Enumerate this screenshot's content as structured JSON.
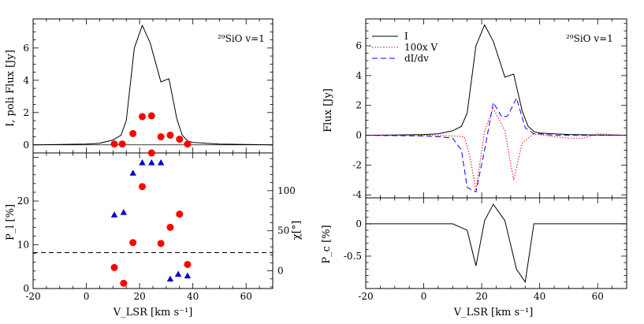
{
  "chart_data": [
    {
      "type": "line",
      "panel": "left-top",
      "annotation": "²⁹SiO v=1",
      "ylabel": "I, poli Flux [Jy]",
      "xlim": [
        -20,
        70
      ],
      "ylim": [
        -0.5,
        7.8
      ],
      "yticks": [
        0,
        2,
        4,
        6
      ],
      "series": [
        {
          "kind": "line",
          "color": "#000000",
          "x": [
            -20,
            -10,
            0,
            5,
            10,
            13,
            15,
            18,
            21,
            24,
            28,
            31,
            34,
            36,
            38,
            40,
            45,
            50,
            60,
            70
          ],
          "y": [
            0,
            0.02,
            0.05,
            0.1,
            0.3,
            0.6,
            1.5,
            6.0,
            7.4,
            6.3,
            3.9,
            4.1,
            1.6,
            0.6,
            0.25,
            0.15,
            0.1,
            0.05,
            0.02,
            0
          ]
        },
        {
          "kind": "scatter",
          "color": "#ff0000",
          "x": [
            10.5,
            13.5,
            17.5,
            21,
            24.5,
            28,
            31.5,
            35,
            38
          ],
          "y": [
            0.05,
            0.05,
            0.7,
            1.75,
            1.8,
            0.5,
            0.6,
            0.35,
            0.05
          ]
        }
      ]
    },
    {
      "type": "scatter",
      "panel": "left-bottom",
      "xlabel": "V_LSR [km s⁻¹]",
      "ylabel": "P_l [%]",
      "y2label": "χ[°]",
      "xlim": [
        -20,
        70
      ],
      "xticks": [
        -20,
        0,
        20,
        40,
        60
      ],
      "ylim": [
        0,
        31
      ],
      "yticks": [
        0,
        10,
        20
      ],
      "y2lim": [
        -22,
        147
      ],
      "y2ticks": [
        0,
        50,
        100
      ],
      "series": [
        {
          "name": "P_l",
          "kind": "scatter",
          "color": "#ff0000",
          "x": [
            10.5,
            14,
            17.5,
            21,
            24.5,
            28,
            31.5,
            35,
            38
          ],
          "y": [
            4.8,
            1.2,
            10.5,
            23.3,
            31.0,
            10.3,
            14.0,
            17.0,
            5.5
          ]
        },
        {
          "name": "chi",
          "kind": "triangle",
          "color": "#0000cc",
          "x": [
            10.5,
            14,
            17.5,
            21,
            24.5,
            28,
            31.5,
            34.5,
            38
          ],
          "y2": [
            70,
            73,
            122,
            135,
            135,
            135,
            -10,
            -4,
            -6
          ]
        },
        {
          "name": "threshold",
          "kind": "dashed",
          "color": "#000000",
          "y": 8.2
        }
      ]
    },
    {
      "type": "line",
      "panel": "right-top",
      "annotation": "²⁹SiO v=1",
      "ylabel": "Flux [Jy]",
      "xlim": [
        -20,
        70
      ],
      "ylim": [
        -4.2,
        7.8
      ],
      "yticks": [
        -4,
        -2,
        0,
        2,
        4,
        6
      ],
      "legend": "top-left",
      "series": [
        {
          "name": "I",
          "kind": "line",
          "color": "#000000",
          "dash": "none",
          "x": [
            -20,
            -10,
            0,
            5,
            10,
            13,
            15,
            18,
            21,
            24,
            28,
            31,
            34,
            36,
            38,
            40,
            45,
            50,
            60,
            70
          ],
          "y": [
            0,
            0.02,
            0.05,
            0.1,
            0.3,
            0.6,
            1.5,
            6.0,
            7.4,
            6.3,
            3.9,
            4.1,
            1.6,
            0.6,
            0.25,
            0.15,
            0.1,
            0.05,
            0.02,
            0
          ]
        },
        {
          "name": "100x V",
          "kind": "line",
          "color": "#ff0000",
          "dash": "1.5,2",
          "x": [
            -20,
            0,
            10,
            14,
            16,
            18,
            21,
            24,
            28,
            31,
            34,
            38,
            45,
            50,
            55,
            60,
            70
          ],
          "y": [
            0,
            0,
            -0.05,
            -0.1,
            -1.5,
            -3.7,
            0.3,
            1.8,
            0.3,
            -3.0,
            -0.5,
            0.1,
            -0.1,
            -0.2,
            -0.2,
            0.1,
            0
          ]
        },
        {
          "name": "dI/dv",
          "kind": "line",
          "color": "#0000ff",
          "dash": "7,4",
          "x": [
            -20,
            0,
            5,
            10,
            13,
            15,
            18,
            21,
            24,
            27,
            29,
            32,
            35,
            38,
            40,
            45,
            60,
            70
          ],
          "y": [
            0,
            -0.05,
            -0.1,
            -0.2,
            -1.0,
            -3.5,
            -3.8,
            -1.0,
            2.2,
            1.2,
            1.3,
            2.5,
            0.5,
            0.1,
            0.1,
            0,
            0,
            0
          ]
        }
      ]
    },
    {
      "type": "line",
      "panel": "right-bottom",
      "xlabel": "V_LSR [km s⁻¹]",
      "ylabel": "P_c [%]",
      "xlim": [
        -20,
        70
      ],
      "xticks": [
        -20,
        0,
        20,
        40,
        60
      ],
      "ylim": [
        -1.0,
        0.4
      ],
      "yticks": [
        -0.5,
        0
      ],
      "series": [
        {
          "kind": "line",
          "color": "#000000",
          "x": [
            -20,
            10,
            15,
            18,
            21,
            24,
            28,
            32,
            35,
            38,
            70
          ],
          "y": [
            0,
            0,
            -0.1,
            -0.65,
            0.05,
            0.3,
            0.05,
            -0.7,
            -0.9,
            0,
            0
          ]
        }
      ]
    }
  ]
}
